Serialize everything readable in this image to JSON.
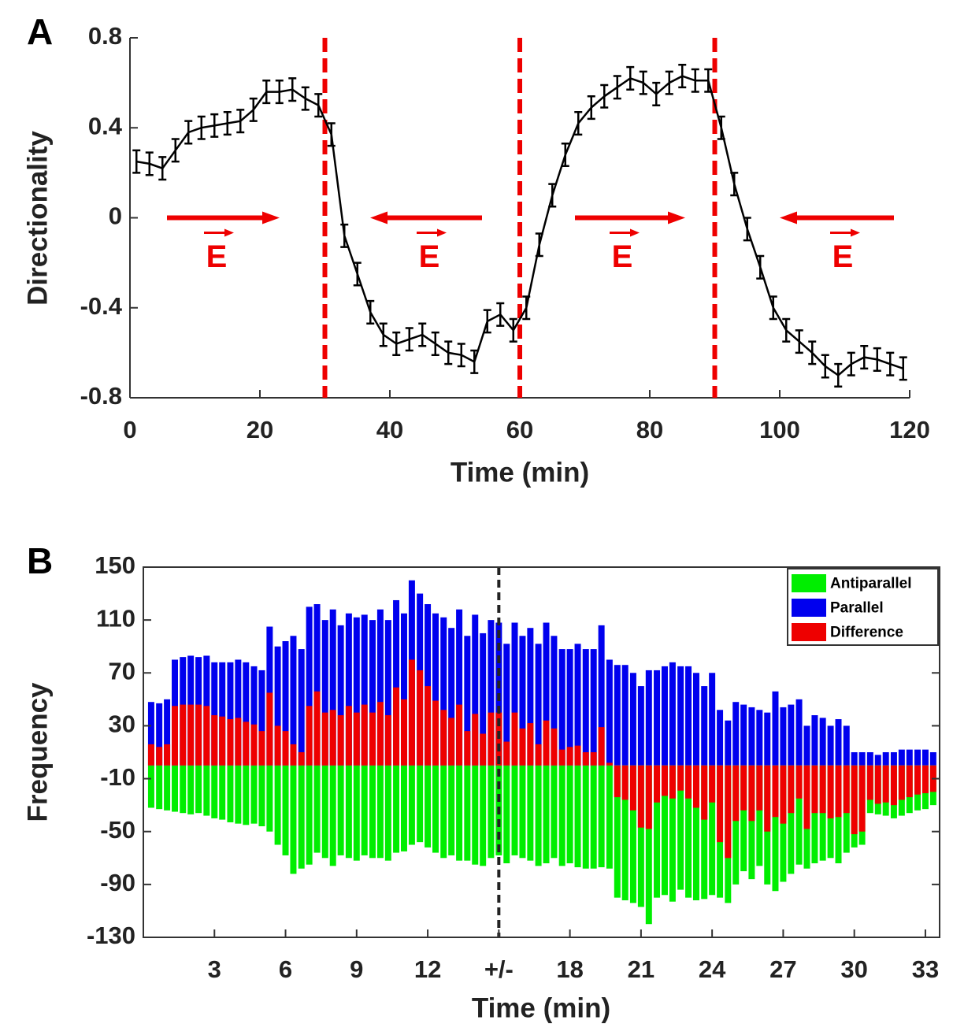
{
  "chart_data": [
    {
      "type": "line",
      "panel_label": "A",
      "xlabel": "Time (min)",
      "ylabel": "Directionality",
      "x": [
        1,
        3,
        5,
        7,
        9,
        11,
        13,
        15,
        17,
        19,
        21,
        23,
        25,
        27,
        29,
        31,
        33,
        35,
        37,
        39,
        41,
        43,
        45,
        47,
        49,
        51,
        53,
        55,
        57,
        59,
        61,
        63,
        65,
        67,
        69,
        71,
        73,
        75,
        77,
        79,
        81,
        83,
        85,
        87,
        89,
        91,
        93,
        95,
        97,
        99,
        101,
        103,
        105,
        107,
        109,
        111,
        113,
        115,
        117,
        119
      ],
      "values": [
        0.25,
        0.24,
        0.22,
        0.3,
        0.38,
        0.4,
        0.41,
        0.42,
        0.43,
        0.48,
        0.56,
        0.56,
        0.57,
        0.53,
        0.5,
        0.37,
        -0.08,
        -0.25,
        -0.42,
        -0.52,
        -0.56,
        -0.54,
        -0.52,
        -0.56,
        -0.6,
        -0.61,
        -0.64,
        -0.46,
        -0.43,
        -0.5,
        -0.4,
        -0.12,
        0.1,
        0.28,
        0.42,
        0.49,
        0.54,
        0.58,
        0.62,
        0.6,
        0.55,
        0.6,
        0.63,
        0.61,
        0.61,
        0.4,
        0.15,
        -0.05,
        -0.22,
        -0.4,
        -0.5,
        -0.55,
        -0.6,
        -0.66,
        -0.7,
        -0.65,
        -0.62,
        -0.63,
        -0.65,
        -0.67
      ],
      "error": 0.05,
      "color": "#000000",
      "vlines": [
        30,
        60,
        90
      ],
      "vline_color": "#ee0000",
      "annotations": [
        "E",
        "E",
        "E",
        "E"
      ],
      "xlim": [
        0,
        120
      ],
      "xticks": [
        0,
        20,
        40,
        60,
        80,
        100,
        120
      ],
      "ylim": [
        -0.8,
        0.8
      ],
      "yticks": [
        -0.8,
        -0.4,
        0,
        0.4,
        0.8
      ]
    },
    {
      "type": "bar",
      "panel_label": "B",
      "xlabel": "Time (min)",
      "ylabel": "Frequency",
      "x": [
        0.33,
        0.67,
        1,
        1.33,
        1.67,
        2,
        2.33,
        2.67,
        3,
        3.33,
        3.67,
        4,
        4.33,
        4.67,
        5,
        5.33,
        5.67,
        6,
        6.33,
        6.67,
        7,
        7.33,
        7.67,
        8,
        8.33,
        8.67,
        9,
        9.33,
        9.67,
        10,
        10.33,
        10.67,
        11,
        11.33,
        11.67,
        12,
        12.33,
        12.67,
        13,
        13.33,
        13.67,
        14,
        14.33,
        14.67,
        15,
        15.33,
        15.67,
        16,
        16.33,
        16.67,
        17,
        17.33,
        17.67,
        18,
        18.33,
        18.67,
        19,
        19.33,
        19.67,
        20,
        20.33,
        20.67,
        21,
        21.33,
        21.67,
        22,
        22.33,
        22.67,
        23,
        23.33,
        23.67,
        24,
        24.33,
        24.67,
        25,
        25.33,
        25.67,
        26,
        26.33,
        26.67,
        27,
        27.33,
        27.67,
        28,
        28.33,
        28.67,
        29,
        29.33,
        29.67,
        30,
        30.33,
        30.67,
        31,
        31.33,
        31.67,
        32,
        32.33,
        32.67,
        33,
        33.33
      ],
      "series": [
        {
          "name": "Antiparallel",
          "color": "#00ee00",
          "values": [
            -32,
            -33,
            -34,
            -35,
            -36,
            -37,
            -36,
            -38,
            -40,
            -41,
            -43,
            -44,
            -45,
            -44,
            -46,
            -50,
            -60,
            -68,
            -82,
            -78,
            -75,
            -66,
            -70,
            -76,
            -68,
            -70,
            -72,
            -68,
            -70,
            -70,
            -72,
            -66,
            -65,
            -60,
            -58,
            -62,
            -66,
            -70,
            -68,
            -72,
            -72,
            -75,
            -76,
            -70,
            -68,
            -74,
            -68,
            -70,
            -72,
            -76,
            -74,
            -70,
            -76,
            -74,
            -77,
            -78,
            -78,
            -77,
            -78,
            -100,
            -102,
            -104,
            -107,
            -120,
            -100,
            -98,
            -103,
            -94,
            -100,
            -102,
            -101,
            -98,
            -100,
            -104,
            -90,
            -80,
            -86,
            -76,
            -90,
            -95,
            -88,
            -82,
            -75,
            -78,
            -74,
            -72,
            -70,
            -74,
            -66,
            -62,
            -60,
            -36,
            -37,
            -38,
            -40,
            -38,
            -36,
            -34,
            -33,
            -30
          ]
        },
        {
          "name": "Parallel",
          "color": "#0000ee",
          "values": [
            48,
            47,
            50,
            80,
            82,
            83,
            82,
            83,
            78,
            78,
            78,
            80,
            78,
            75,
            72,
            105,
            90,
            94,
            98,
            88,
            120,
            122,
            110,
            118,
            106,
            115,
            112,
            114,
            110,
            118,
            110,
            125,
            115,
            140,
            130,
            122,
            115,
            112,
            104,
            118,
            98,
            114,
            100,
            110,
            108,
            92,
            108,
            98,
            104,
            92,
            108,
            98,
            88,
            88,
            92,
            88,
            88,
            106,
            80,
            76,
            76,
            70,
            60,
            72,
            72,
            75,
            78,
            75,
            75,
            70,
            60,
            70,
            42,
            34,
            48,
            46,
            44,
            42,
            40,
            56,
            44,
            46,
            50,
            30,
            38,
            36,
            30,
            35,
            30,
            10,
            10,
            10,
            8,
            10,
            10,
            12,
            12,
            12,
            12,
            10
          ]
        },
        {
          "name": "Difference",
          "color": "#ee0000",
          "values": [
            16,
            14,
            16,
            45,
            46,
            46,
            46,
            45,
            38,
            37,
            35,
            36,
            33,
            31,
            26,
            55,
            30,
            26,
            16,
            10,
            45,
            56,
            40,
            42,
            38,
            45,
            40,
            46,
            40,
            48,
            38,
            59,
            50,
            80,
            72,
            60,
            49,
            42,
            36,
            46,
            26,
            39,
            24,
            40,
            40,
            18,
            40,
            28,
            32,
            16,
            34,
            28,
            12,
            14,
            15,
            10,
            10,
            29,
            2,
            -24,
            -26,
            -34,
            -47,
            -48,
            -28,
            -23,
            -25,
            -19,
            -25,
            -32,
            -41,
            -28,
            -58,
            -70,
            -42,
            -34,
            -42,
            -34,
            -50,
            -39,
            -44,
            -36,
            -25,
            -48,
            -36,
            -36,
            -40,
            -39,
            -36,
            -52,
            -50,
            -26,
            -29,
            -28,
            -30,
            -26,
            -24,
            -22,
            -21,
            -20
          ]
        }
      ],
      "vline": 15,
      "legend": "upper right",
      "xlim": [
        0,
        33.6
      ],
      "xticks": [
        3,
        6,
        9,
        12,
        {
          "value": 15,
          "label": "+/-"
        },
        18,
        21,
        24,
        27,
        30,
        33
      ],
      "ylim": [
        -130,
        150
      ],
      "yticks": [
        -130,
        -90,
        -50,
        -10,
        30,
        70,
        110,
        150
      ]
    }
  ]
}
